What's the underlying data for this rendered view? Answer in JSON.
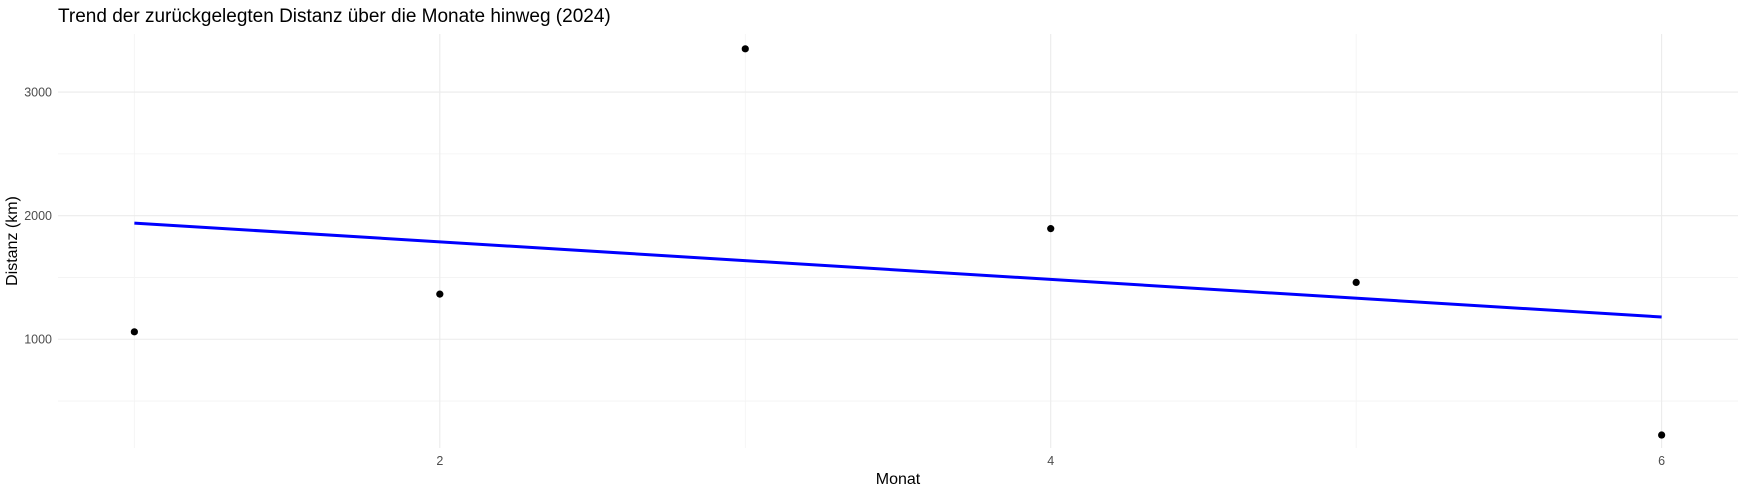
{
  "chart_data": {
    "type": "scatter",
    "title": "Trend der zurückgelegten Distanz über die Monate hinweg (2024)",
    "xlabel": "Monat",
    "ylabel": "Distanz (km)",
    "xlim": [
      0.75,
      6.25
    ],
    "ylim": [
      120,
      3470
    ],
    "x_ticks": [
      2,
      4,
      6
    ],
    "x_tick_labels": [
      "2",
      "4",
      "6"
    ],
    "y_ticks": [
      1000,
      2000,
      3000
    ],
    "y_tick_labels": [
      "1000",
      "2000",
      "3000"
    ],
    "grid": true,
    "legend": "none",
    "points": [
      {
        "x": 1,
        "y": 1060
      },
      {
        "x": 2,
        "y": 1365
      },
      {
        "x": 3,
        "y": 3350
      },
      {
        "x": 4,
        "y": 1895
      },
      {
        "x": 5,
        "y": 1460
      },
      {
        "x": 6,
        "y": 225
      }
    ],
    "trend_line": {
      "method": "linear",
      "x": [
        1,
        6
      ],
      "y": [
        1940,
        1180
      ]
    },
    "colors": {
      "point": "#000000",
      "trend_line": "#0000ff",
      "grid": "#ebebeb",
      "background": "#ffffff"
    }
  }
}
